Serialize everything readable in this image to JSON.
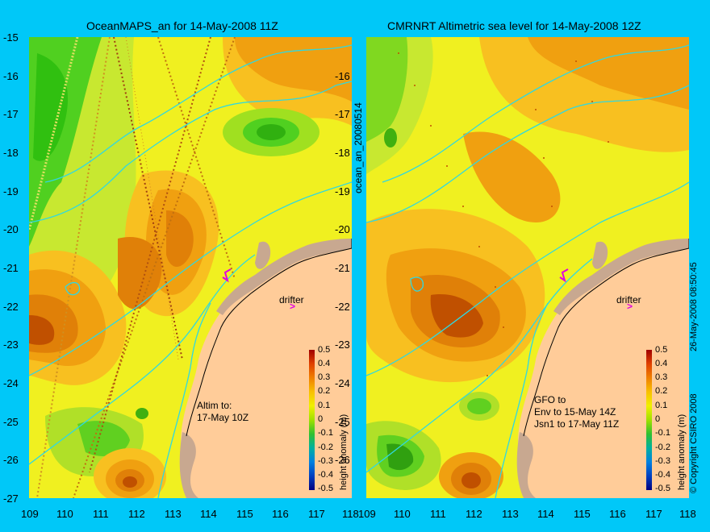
{
  "left_panel": {
    "title": "OceanMAPS_an for 14-May-2008 11Z",
    "note": "Altim to:\n17-May 10Z",
    "drifter_label": "drifter"
  },
  "right_panel": {
    "title": "CMRNRT Altimetric sea level  for 14-May-2008 12Z",
    "note": "GFO to\nEnv to 15-May 14Z\nJsn1 to 17-May 11Z",
    "drifter_label": "drifter"
  },
  "y_ticks": [
    "-15",
    "-16",
    "-17",
    "-18",
    "-19",
    "-20",
    "-21",
    "-22",
    "-23",
    "-24",
    "-25",
    "-26",
    "-27"
  ],
  "x_ticks_left": [
    "109",
    "110",
    "111",
    "112",
    "113",
    "114",
    "115",
    "116",
    "117",
    "118"
  ],
  "x_ticks_right": [
    "109",
    "110",
    "111",
    "112",
    "113",
    "114",
    "115",
    "116",
    "117",
    "118"
  ],
  "colorbar": {
    "ticks": [
      "0.5",
      "0.4",
      "0.3",
      "0.2",
      "0.1",
      "0",
      "-0.1",
      "-0.2",
      "-0.3",
      "-0.4",
      "-0.5"
    ],
    "label": "height anomaly (m)"
  },
  "file_label": "ocean_an_20080514",
  "date_stamp": "26-May-2008 08:50:45",
  "copyright": "© Copyright CSIRO 2008",
  "colors": {
    "background": "#00c8f8",
    "land": "#ffcc99",
    "shelf": "#c8a890",
    "contour": "#30d8e0"
  }
}
